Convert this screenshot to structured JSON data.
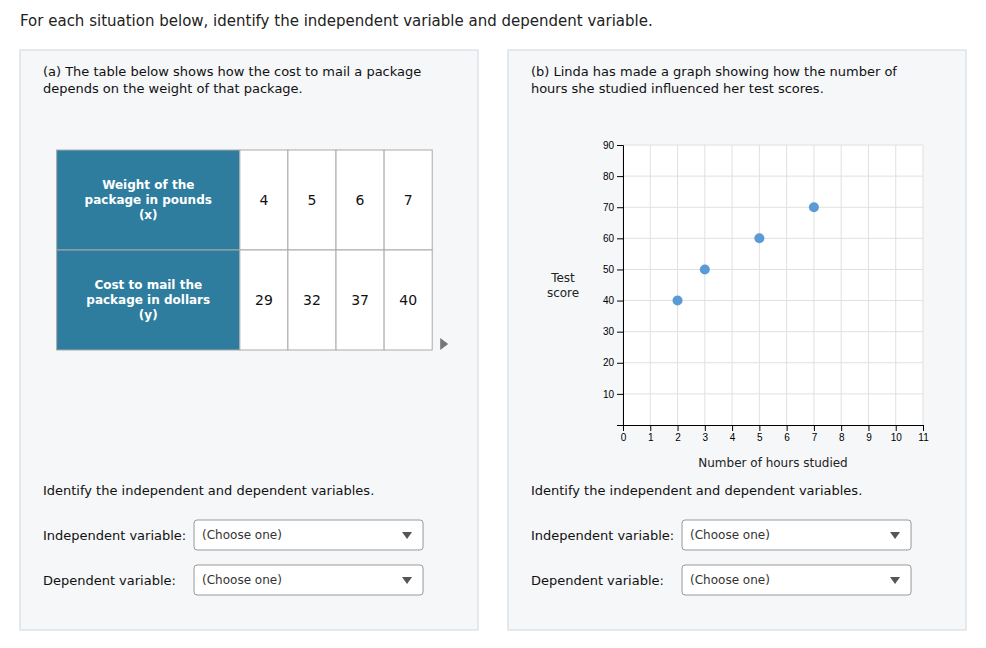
{
  "title": "For each situation below, identify the independent variable and dependent variable.",
  "chart_data": [
    {
      "type": "table",
      "title": "(a)  The table below shows how the cost to mail a package\ndepends on the weight of that package.",
      "color": "#2e7d9e",
      "series": [
        {
          "name": "Weight of the\npackage in pounds\n(x)",
          "values": [
            4,
            5,
            6,
            7
          ]
        },
        {
          "name": "Cost to mail the\npackage in dollars\n(y)",
          "values": [
            29,
            32,
            37,
            40
          ]
        }
      ],
      "annotations": [
        "Identify the independent and dependent variables.",
        "Independent variable:",
        "Dependent variable:",
        "(Choose one)"
      ]
    },
    {
      "type": "scatter",
      "title": "(b)  Linda has made a graph showing how the number of\nhours she studied influenced her test scores.",
      "x": [
        2,
        3,
        5,
        7
      ],
      "values": [
        40,
        50,
        60,
        70
      ],
      "color": "#5b9bd5",
      "xlabel": "Number of hours studied",
      "ylabel": "Test\nscore",
      "xlim": [
        0,
        11
      ],
      "ylim": [
        0,
        90
      ],
      "xticks": [
        0,
        1,
        2,
        3,
        4,
        5,
        6,
        7,
        8,
        9,
        10,
        11
      ],
      "yticks": [
        10,
        20,
        30,
        40,
        50,
        60,
        70,
        80,
        90
      ],
      "grid": true,
      "annotations": [
        "Identify the independent and dependent variables.",
        "Independent variable:",
        "Dependent variable:",
        "(Choose one)"
      ]
    }
  ]
}
